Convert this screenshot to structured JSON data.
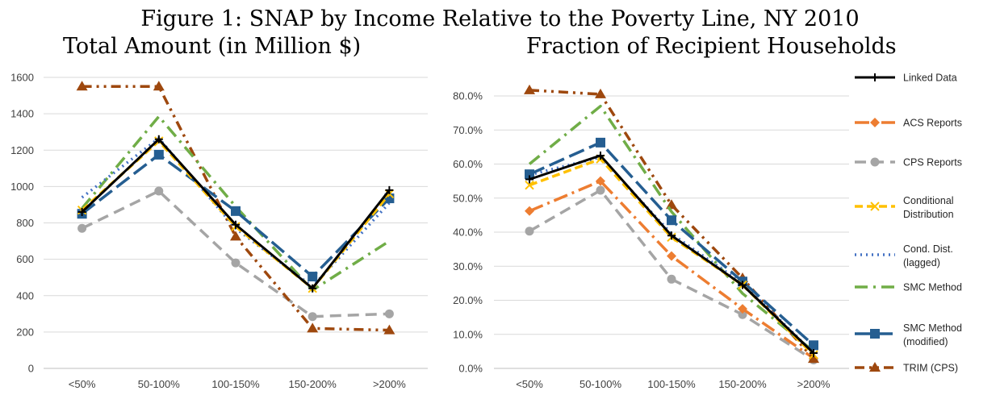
{
  "figure_title": "Figure 1: SNAP by Income Relative to the Poverty Line, NY 2010",
  "colors": {
    "Linked Data": "#000000",
    "ACS Reports": "#ed7d31",
    "CPS Reports": "#a5a5a5",
    "Conditional Distribution": "#ffc000",
    "Cond. Dist. (lagged)": "#4472c4",
    "SMC Method": "#70ad47",
    "SMC Method (modified)": "#255e91",
    "TRIM (CPS)": "#9e480e"
  },
  "legend": [
    {
      "name": "Linked Data",
      "lines": [
        "Linked Data"
      ]
    },
    {
      "name": "ACS Reports",
      "lines": [
        "ACS Reports"
      ]
    },
    {
      "name": "CPS Reports",
      "lines": [
        "CPS Reports"
      ]
    },
    {
      "name": "Conditional Distribution",
      "lines": [
        "Conditional",
        "Distribution"
      ]
    },
    {
      "name": "Cond. Dist. (lagged)",
      "lines": [
        "Cond. Dist.",
        "(lagged)"
      ]
    },
    {
      "name": "SMC Method",
      "lines": [
        "SMC Method"
      ]
    },
    {
      "name": "SMC Method (modified)",
      "lines": [
        "SMC Method",
        "(modified)"
      ]
    },
    {
      "name": "TRIM (CPS)",
      "lines": [
        "TRIM (CPS)"
      ]
    }
  ],
  "chart_data": [
    {
      "type": "line",
      "title": "Total Amount (in Million $)",
      "categories": [
        "<50%",
        "50-100%",
        "100-150%",
        "150-200%",
        ">200%"
      ],
      "ylim": [
        0,
        1600
      ],
      "yticks": [
        "0",
        "200",
        "400",
        "600",
        "800",
        "1000",
        "1200",
        "1400",
        "1600"
      ],
      "grid": true,
      "series": [
        {
          "name": "Linked Data",
          "values": [
            860,
            1260,
            790,
            440,
            980
          ]
        },
        {
          "name": "CPS Reports",
          "values": [
            770,
            975,
            580,
            285,
            300
          ]
        },
        {
          "name": "Conditional Distribution",
          "values": [
            870,
            1250,
            780,
            440,
            960
          ]
        },
        {
          "name": "Cond. Dist. (lagged)",
          "values": [
            940,
            1265,
            770,
            450,
            910
          ]
        },
        {
          "name": "SMC Method",
          "values": [
            880,
            1385,
            890,
            430,
            700
          ]
        },
        {
          "name": "SMC Method (modified)",
          "values": [
            850,
            1175,
            865,
            505,
            935
          ]
        },
        {
          "name": "TRIM (CPS)",
          "values": [
            1550,
            1550,
            725,
            220,
            210
          ]
        }
      ]
    },
    {
      "type": "line",
      "title": "Fraction of Recipient Households",
      "categories": [
        "<50%",
        "50-100%",
        "100-150%",
        "150-200%",
        ">200%"
      ],
      "ylim": [
        0,
        80
      ],
      "yticks": [
        "0.0%",
        "10.0%",
        "20.0%",
        "30.0%",
        "40.0%",
        "50.0%",
        "60.0%",
        "70.0%",
        "80.0%"
      ],
      "grid": true,
      "legend": "right",
      "series": [
        {
          "name": "Linked Data",
          "values": [
            55.5,
            62.5,
            39.0,
            24.5,
            4.5
          ]
        },
        {
          "name": "ACS Reports",
          "values": [
            46.2,
            55.0,
            33.0,
            17.5,
            3.0
          ]
        },
        {
          "name": "CPS Reports",
          "values": [
            40.3,
            52.3,
            26.2,
            15.8,
            2.5
          ]
        },
        {
          "name": "Conditional Distribution",
          "values": [
            53.8,
            61.5,
            38.5,
            24.5,
            4.0
          ]
        },
        {
          "name": "Cond. Dist. (lagged)",
          "values": [
            56.8,
            62.0,
            39.5,
            25.0,
            4.5
          ]
        },
        {
          "name": "SMC Method",
          "values": [
            60.0,
            77.0,
            46.0,
            22.0,
            5.0
          ]
        },
        {
          "name": "SMC Method (modified)",
          "values": [
            57.0,
            66.3,
            43.5,
            25.5,
            6.8
          ]
        },
        {
          "name": "TRIM (CPS)",
          "values": [
            81.7,
            80.5,
            48.0,
            26.5,
            2.8
          ]
        }
      ]
    }
  ]
}
